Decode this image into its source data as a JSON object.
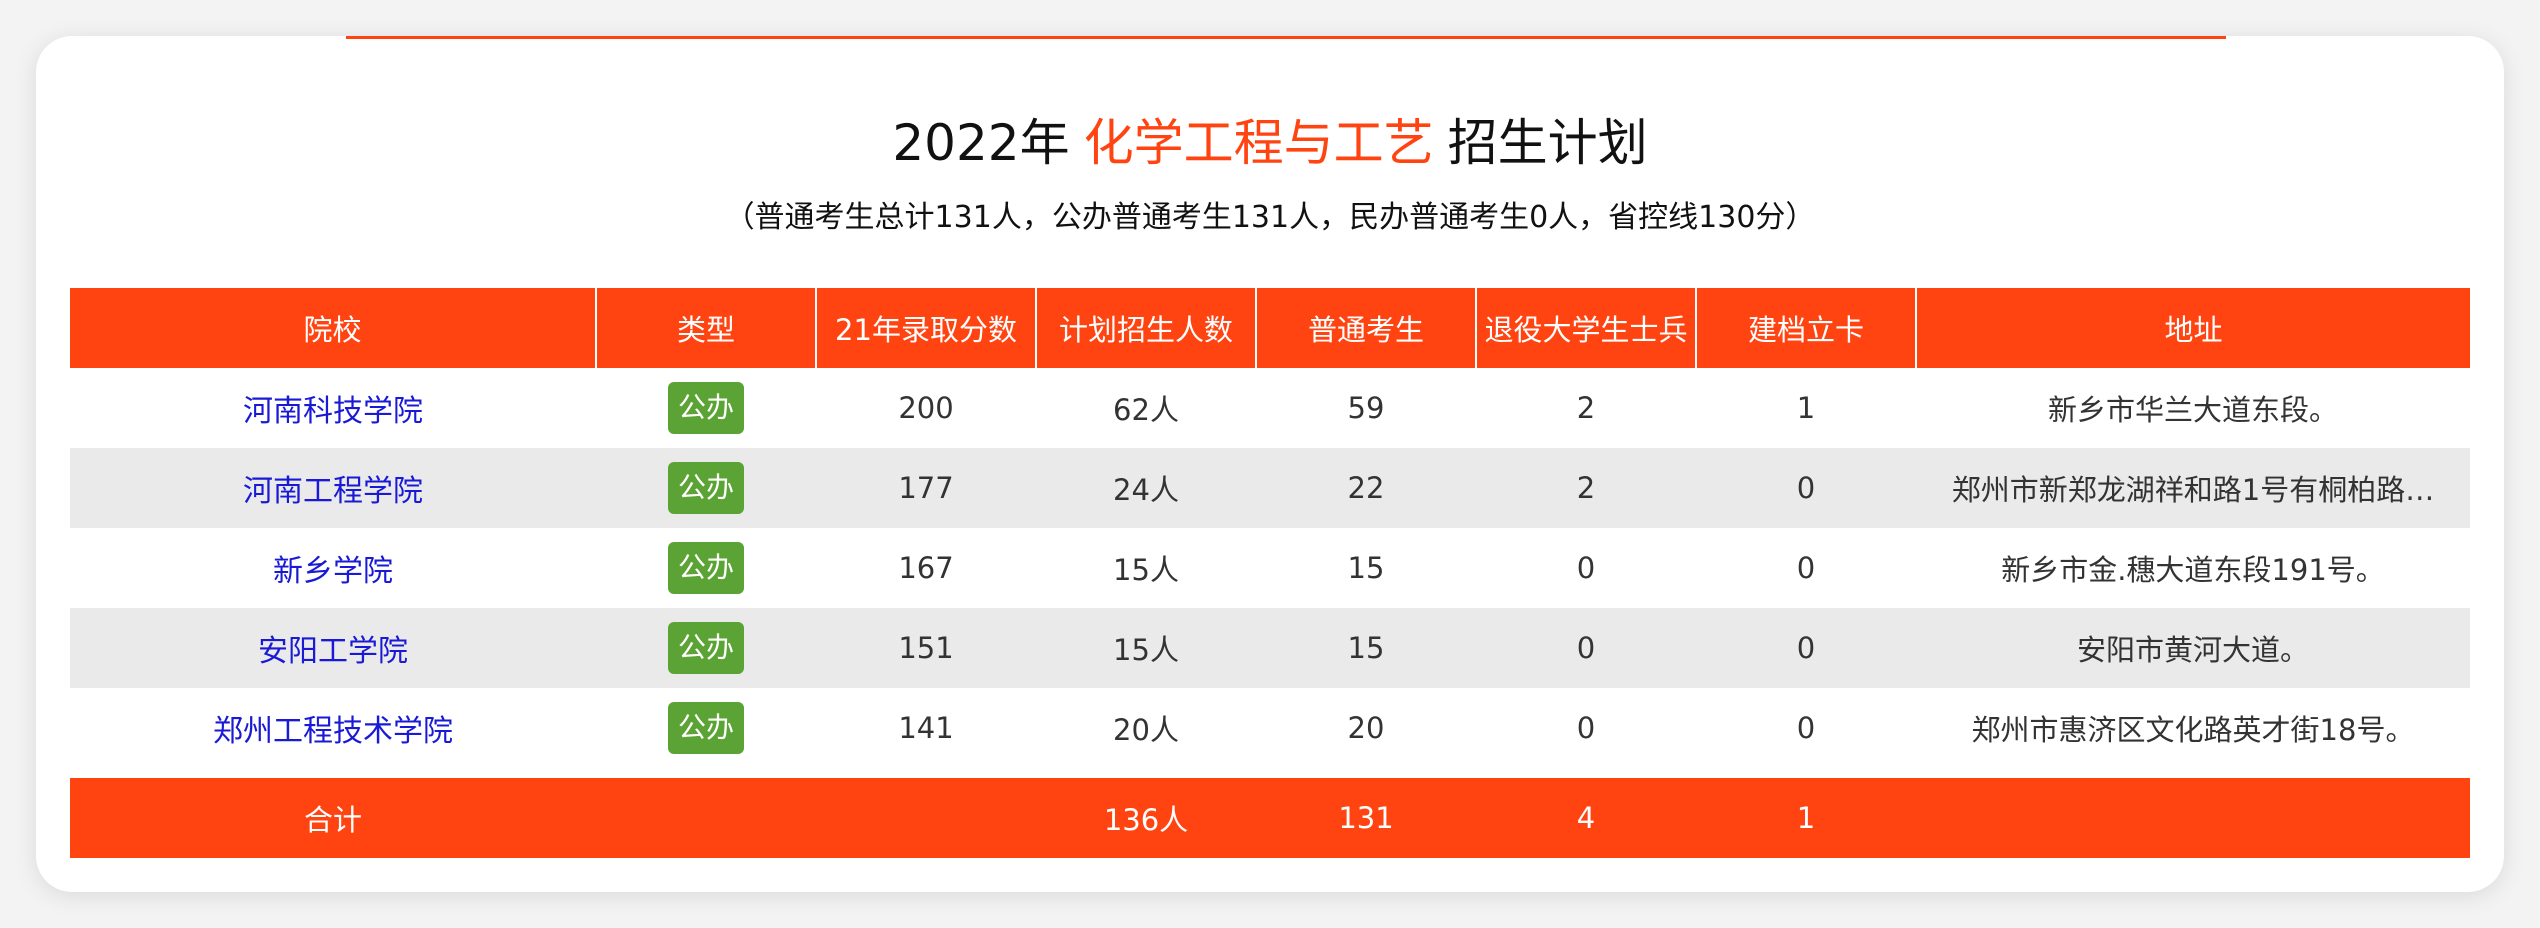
{
  "header": {
    "year": "2022年",
    "major": "化学工程与工艺",
    "suffix": "招生计划",
    "subtitle": "（普通考生总计131人，公办普通考生131人，民办普通考生0人，省控线130分）"
  },
  "table": {
    "columns": [
      "院校",
      "类型",
      "21年录取分数",
      "计划招生人数",
      "普通考生",
      "退役大学生士兵",
      "建档立卡",
      "地址"
    ],
    "rows": [
      {
        "school": "河南科技学院",
        "type": "公办",
        "score": "200",
        "plan": "62人",
        "regular": "59",
        "veteran": "2",
        "poverty": "1",
        "address": "新乡市华兰大道东段。"
      },
      {
        "school": "河南工程学院",
        "type": "公办",
        "score": "177",
        "plan": "24人",
        "regular": "22",
        "veteran": "2",
        "poverty": "0",
        "address": "郑州市新郑龙湖祥和路1号有桐柏路…"
      },
      {
        "school": "新乡学院",
        "type": "公办",
        "score": "167",
        "plan": "15人",
        "regular": "15",
        "veteran": "0",
        "poverty": "0",
        "address": "新乡市金.穗大道东段191号。"
      },
      {
        "school": "安阳工学院",
        "type": "公办",
        "score": "151",
        "plan": "15人",
        "regular": "15",
        "veteran": "0",
        "poverty": "0",
        "address": "安阳市黄河大道。"
      },
      {
        "school": "郑州工程技术学院",
        "type": "公办",
        "score": "141",
        "plan": "20人",
        "regular": "20",
        "veteran": "0",
        "poverty": "0",
        "address": "郑州市惠济区文化路英才街18号。"
      }
    ],
    "total": {
      "label": "合计",
      "type": "",
      "score": "",
      "plan": "136人",
      "regular": "131",
      "veteran": "4",
      "poverty": "1",
      "address": ""
    }
  },
  "colors": {
    "accent": "#ff4411",
    "badge": "#5aa334",
    "link": "#1a1ad6",
    "stripe": "#eaeaea"
  }
}
